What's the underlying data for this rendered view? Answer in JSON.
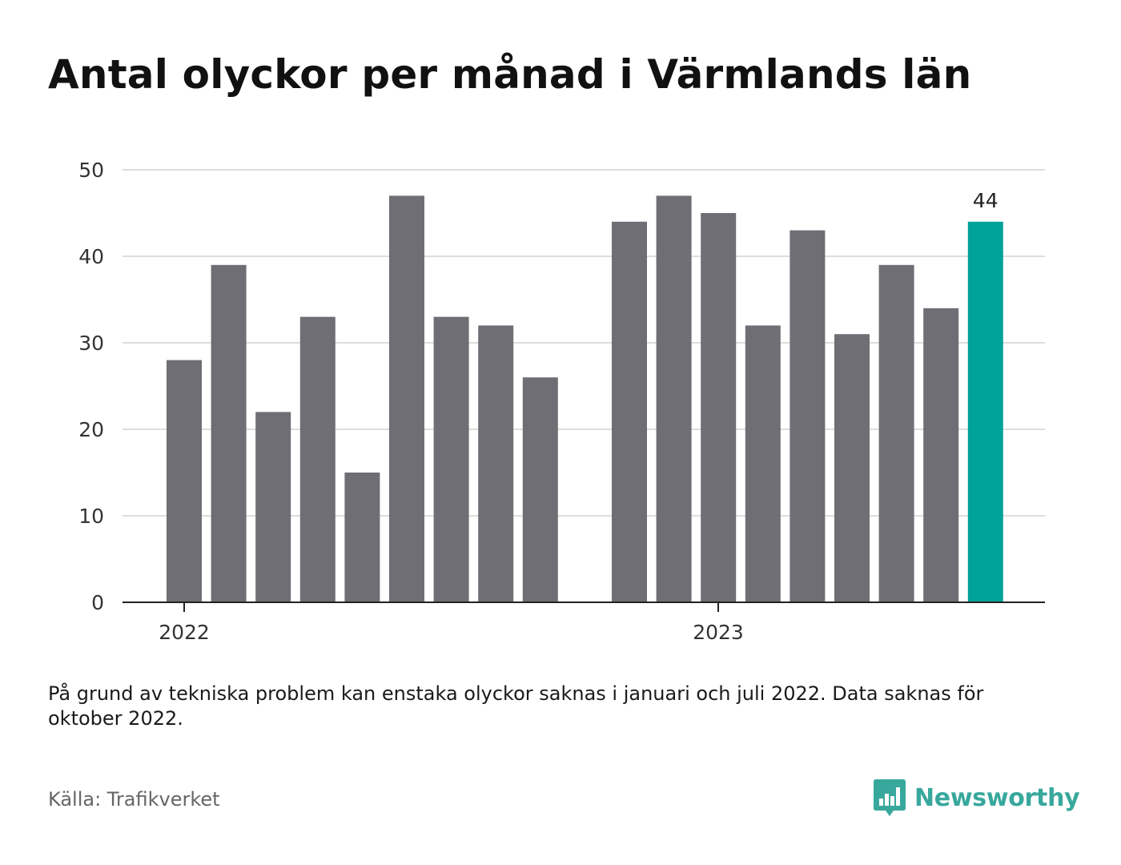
{
  "title": "Antal olyckor per månad i Värmlands län",
  "note": "På grund av tekniska problem kan enstaka olyckor saknas i januari och juli 2022. Data saknas för oktober 2022.",
  "source": "Källa: Trafikverket",
  "brand": {
    "name": "Newsworthy",
    "icon": "newsworthy-logo-icon",
    "color": "#38a89d"
  },
  "colors": {
    "bar": "#6e6e74",
    "highlight": "#00a398",
    "grid": "#dddddd",
    "axis": "#222222"
  },
  "chart_data": {
    "type": "bar",
    "x_ticks": [
      "2022",
      "2023"
    ],
    "y_ticks": [
      "0",
      "10",
      "20",
      "30",
      "40",
      "50"
    ],
    "ylim": [
      0,
      50
    ],
    "grid": true,
    "highlight_label": "44",
    "bars": [
      {
        "period": "2022-01",
        "value": 28
      },
      {
        "period": "2022-02",
        "value": 39
      },
      {
        "period": "2022-03",
        "value": 22
      },
      {
        "period": "2022-04",
        "value": 33
      },
      {
        "period": "2022-05",
        "value": 15
      },
      {
        "period": "2022-06",
        "value": 47
      },
      {
        "period": "2022-07",
        "value": 33
      },
      {
        "period": "2022-08",
        "value": 32
      },
      {
        "period": "2022-09",
        "value": 26
      },
      {
        "period": "2022-10",
        "value": null
      },
      {
        "period": "2022-11",
        "value": 44
      },
      {
        "period": "2022-12",
        "value": 47
      },
      {
        "period": "2023-01",
        "value": 45
      },
      {
        "period": "2023-02",
        "value": 32
      },
      {
        "period": "2023-03",
        "value": 43
      },
      {
        "period": "2023-04",
        "value": 31
      },
      {
        "period": "2023-05",
        "value": 39
      },
      {
        "period": "2023-06",
        "value": 34
      },
      {
        "period": "2023-07",
        "value": 44,
        "highlight": true
      }
    ]
  }
}
